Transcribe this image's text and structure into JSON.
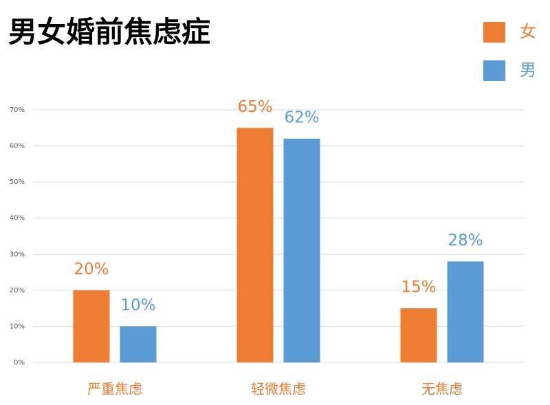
{
  "chart_data": {
    "type": "bar",
    "title": "男女婚前焦虑症",
    "categories": [
      "严重焦虑",
      "轻微焦虑",
      "无焦虑"
    ],
    "series": [
      {
        "name": "女",
        "color": "#ed7d31",
        "values": [
          20,
          65,
          15
        ],
        "value_labels": [
          "20%",
          "65%",
          "15%"
        ]
      },
      {
        "name": "男",
        "color": "#5b9bd5",
        "values": [
          10,
          62,
          28
        ],
        "value_labels": [
          "10%",
          "62%",
          "28%"
        ]
      }
    ],
    "ylim": [
      0,
      70
    ],
    "yticks": [
      {
        "value": 0,
        "label": "0%"
      },
      {
        "value": 10,
        "label": "10%"
      },
      {
        "value": 20,
        "label": "20%"
      },
      {
        "value": 30,
        "label": "30%"
      },
      {
        "value": 40,
        "label": "40%"
      },
      {
        "value": 50,
        "label": "50%"
      },
      {
        "value": 60,
        "label": "60%"
      },
      {
        "value": 70,
        "label": "70%"
      }
    ],
    "grid": true,
    "legend": "top-right"
  }
}
